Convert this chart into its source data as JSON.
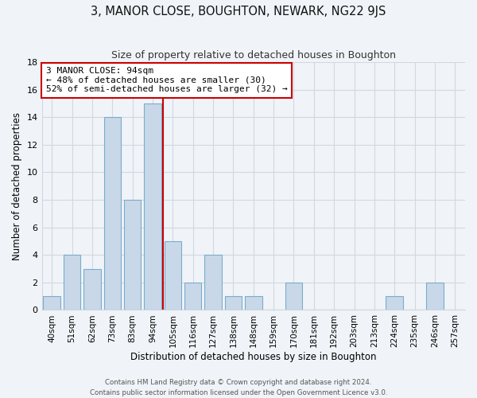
{
  "title": "3, MANOR CLOSE, BOUGHTON, NEWARK, NG22 9JS",
  "subtitle": "Size of property relative to detached houses in Boughton",
  "xlabel": "Distribution of detached houses by size in Boughton",
  "ylabel": "Number of detached properties",
  "bin_labels": [
    "40sqm",
    "51sqm",
    "62sqm",
    "73sqm",
    "83sqm",
    "94sqm",
    "105sqm",
    "116sqm",
    "127sqm",
    "138sqm",
    "148sqm",
    "159sqm",
    "170sqm",
    "181sqm",
    "192sqm",
    "203sqm",
    "213sqm",
    "224sqm",
    "235sqm",
    "246sqm",
    "257sqm"
  ],
  "bar_values": [
    1,
    4,
    3,
    14,
    8,
    15,
    5,
    2,
    4,
    1,
    1,
    0,
    2,
    0,
    0,
    0,
    0,
    1,
    0,
    2,
    0
  ],
  "highlight_index": 5,
  "bar_color": "#c8d8e8",
  "bar_edge_color": "#7aaccc",
  "highlight_line_color": "#cc0000",
  "annotation_text": "3 MANOR CLOSE: 94sqm\n← 48% of detached houses are smaller (30)\n52% of semi-detached houses are larger (32) →",
  "annotation_box_color": "#ffffff",
  "annotation_box_edge": "#cc0000",
  "ylim": [
    0,
    18
  ],
  "yticks": [
    0,
    2,
    4,
    6,
    8,
    10,
    12,
    14,
    16,
    18
  ],
  "footer_line1": "Contains HM Land Registry data © Crown copyright and database right 2024.",
  "footer_line2": "Contains public sector information licensed under the Open Government Licence v3.0.",
  "bg_color": "#f0f4f8",
  "plot_bg_color": "#f0f4f8",
  "grid_color": "#d0d8e0"
}
